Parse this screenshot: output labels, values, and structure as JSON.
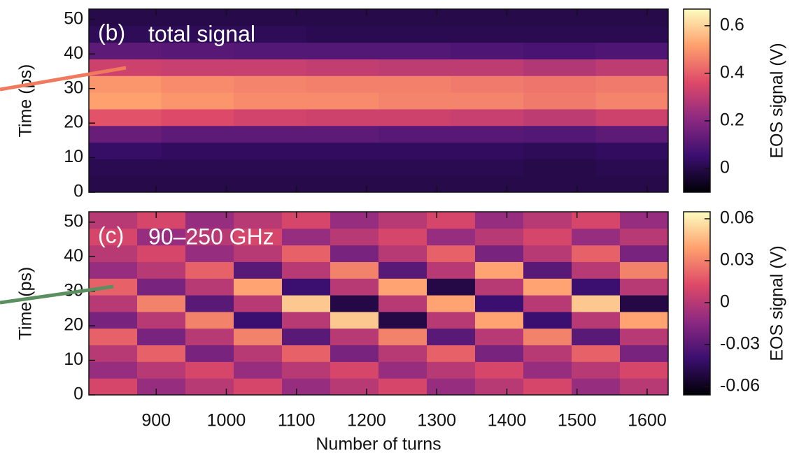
{
  "chart_data": [
    {
      "type": "heatmap",
      "label": "(b)",
      "annotation": "total signal",
      "y_label": "Time (ps)",
      "colorbar_label": "EOS signal (V)",
      "xlim": [
        804,
        1630
      ],
      "xticks": [
        900,
        1000,
        1100,
        1200,
        1300,
        1400,
        1500,
        1600
      ],
      "show_xticklabels": false,
      "ylim": [
        0,
        53
      ],
      "yticks": [
        0,
        10,
        20,
        30,
        40,
        50
      ],
      "clim": [
        -0.1,
        0.67
      ],
      "cticks": [
        0,
        0.2,
        0.4,
        0.6
      ],
      "colormap": [
        "#000004",
        "#3b0f70",
        "#8c2981",
        "#de4968",
        "#fe9f6d",
        "#fcfdbf"
      ],
      "z": [
        [
          0.0,
          0.0,
          0.0,
          0.0,
          0.0,
          0.0,
          0.0,
          0.0
        ],
        [
          0.01,
          0.01,
          0.01,
          0.01,
          0.01,
          0.01,
          0.0,
          0.01
        ],
        [
          0.04,
          0.03,
          0.03,
          0.03,
          0.03,
          0.03,
          0.02,
          0.03
        ],
        [
          0.14,
          0.12,
          0.12,
          0.12,
          0.11,
          0.11,
          0.1,
          0.12
        ],
        [
          0.38,
          0.36,
          0.34,
          0.33,
          0.33,
          0.32,
          0.3,
          0.33
        ],
        [
          0.52,
          0.5,
          0.48,
          0.48,
          0.47,
          0.47,
          0.45,
          0.47
        ],
        [
          0.5,
          0.48,
          0.47,
          0.46,
          0.46,
          0.45,
          0.44,
          0.45
        ],
        [
          0.33,
          0.32,
          0.32,
          0.31,
          0.3,
          0.3,
          0.28,
          0.3
        ],
        [
          0.12,
          0.11,
          0.1,
          0.1,
          0.1,
          0.09,
          0.08,
          0.09
        ],
        [
          0.02,
          0.02,
          0.02,
          0.01,
          0.01,
          0.01,
          0.01,
          0.01
        ],
        [
          0.0,
          0.0,
          0.0,
          0.0,
          0.0,
          0.0,
          0.0,
          0.0
        ]
      ]
    },
    {
      "type": "heatmap",
      "label": "(c)",
      "annotation": "90–250 GHz",
      "y_label": "Time (ps)",
      "colorbar_label": "EOS signal (V)",
      "x_label": "Number of turns",
      "xlim": [
        804,
        1630
      ],
      "xticks": [
        900,
        1000,
        1100,
        1200,
        1300,
        1400,
        1500,
        1600
      ],
      "show_xticklabels": true,
      "ylim": [
        0,
        53
      ],
      "yticks": [
        0,
        10,
        20,
        30,
        40,
        50
      ],
      "clim": [
        -0.066,
        0.065
      ],
      "cticks": [
        -0.06,
        -0.03,
        0,
        0.03,
        0.06
      ],
      "colormap": [
        "#000004",
        "#3b0f70",
        "#8c2981",
        "#de4968",
        "#fe9f6d",
        "#fcfdbf"
      ],
      "z": [
        [
          0.01,
          -0.01,
          0.0,
          0.01,
          -0.01,
          0.0,
          0.01,
          -0.01,
          0.0,
          0.01,
          -0.01,
          0.0
        ],
        [
          -0.01,
          0.0,
          0.01,
          -0.01,
          0.0,
          0.01,
          -0.01,
          0.0,
          0.01,
          -0.01,
          0.0,
          0.01
        ],
        [
          0.0,
          0.02,
          -0.02,
          0.0,
          0.02,
          -0.02,
          0.0,
          0.02,
          -0.02,
          0.0,
          0.02,
          -0.02
        ],
        [
          0.02,
          -0.02,
          0.0,
          0.03,
          -0.03,
          0.0,
          0.03,
          -0.03,
          0.0,
          0.03,
          -0.03,
          0.0
        ],
        [
          -0.02,
          0.0,
          0.03,
          -0.04,
          0.0,
          0.05,
          -0.05,
          0.0,
          0.04,
          -0.04,
          0.0,
          0.04
        ],
        [
          0.0,
          0.03,
          -0.03,
          0.0,
          0.05,
          -0.05,
          0.0,
          0.04,
          -0.04,
          0.0,
          0.05,
          -0.05
        ],
        [
          0.02,
          -0.02,
          0.0,
          0.04,
          -0.04,
          0.0,
          0.04,
          -0.05,
          0.0,
          0.04,
          -0.04,
          0.0
        ],
        [
          -0.01,
          0.0,
          0.02,
          -0.03,
          0.0,
          0.03,
          -0.03,
          0.0,
          0.04,
          -0.03,
          0.0,
          0.03
        ],
        [
          0.0,
          0.01,
          -0.01,
          0.0,
          0.02,
          -0.02,
          0.0,
          0.02,
          -0.02,
          0.0,
          0.02,
          -0.02
        ],
        [
          0.01,
          -0.01,
          0.0,
          0.01,
          -0.01,
          0.0,
          0.01,
          -0.01,
          0.0,
          0.01,
          -0.01,
          0.0
        ],
        [
          0.0,
          0.01,
          -0.01,
          0.0,
          0.01,
          -0.01,
          0.0,
          0.01,
          -0.01,
          0.0,
          0.01,
          -0.01
        ]
      ]
    }
  ]
}
